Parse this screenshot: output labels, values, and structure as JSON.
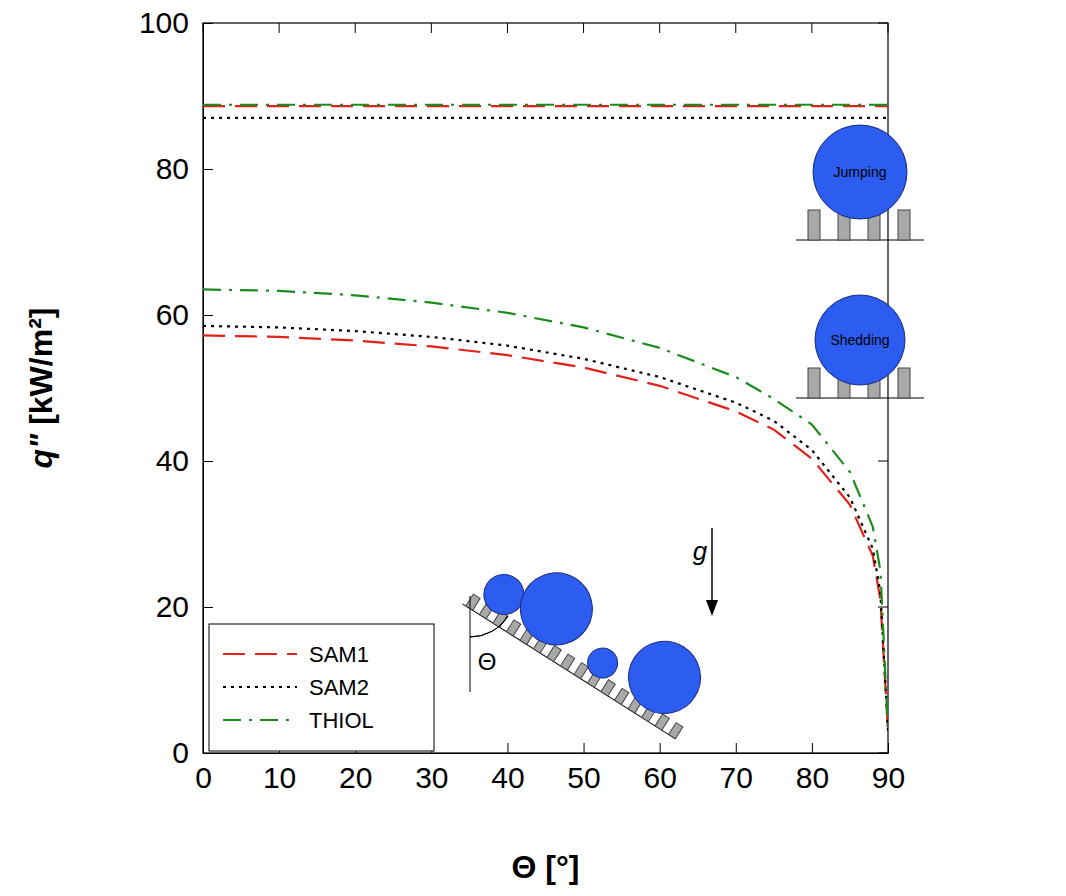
{
  "chart_data": {
    "type": "line",
    "x_label": "Θ [°]",
    "y_label": "q\" [kW/m²]",
    "x": [
      0,
      10,
      20,
      30,
      40,
      50,
      60,
      70,
      75,
      80,
      85,
      88,
      89,
      90
    ],
    "series": [
      {
        "color": "#e0201b",
        "line_style": "dashed",
        "values": [
          88.6,
          88.6,
          88.6,
          88.6,
          88.6,
          88.6,
          88.6,
          88.6,
          88.6,
          88.6,
          88.6,
          88.6,
          88.6,
          88.6
        ]
      },
      {
        "color": "#000000",
        "line_style": "dotted",
        "values": [
          87.0,
          87.0,
          87.0,
          87.0,
          87.0,
          87.0,
          87.0,
          87.0,
          87.0,
          87.0,
          87.0,
          87.0,
          87.0,
          87.0
        ]
      },
      {
        "color": "#1b8c1b",
        "line_style": "dashdot",
        "values": [
          88.8,
          88.8,
          88.8,
          88.8,
          88.8,
          88.8,
          88.8,
          88.8,
          88.8,
          88.8,
          88.8,
          88.8,
          88.8,
          88.8
        ]
      },
      {
        "name": "SAM1",
        "color": "#e0201b",
        "line_style": "dashed",
        "values": [
          57.2,
          57.0,
          56.5,
          55.7,
          54.5,
          52.8,
          50.3,
          46.8,
          44.3,
          40.3,
          34,
          27,
          21,
          3
        ]
      },
      {
        "name": "SAM2",
        "color": "#000000",
        "line_style": "dotted",
        "values": [
          58.5,
          58.3,
          57.8,
          57.0,
          55.8,
          54.0,
          51.5,
          48.0,
          45.5,
          41.5,
          35,
          28,
          22,
          3
        ]
      },
      {
        "name": "THIOL",
        "color": "#1b8c1b",
        "line_style": "dashdot",
        "values": [
          63.5,
          63.3,
          62.7,
          61.7,
          60.3,
          58.3,
          55.5,
          51.5,
          48.5,
          45.0,
          38.5,
          31,
          25,
          3
        ]
      }
    ],
    "xlim": [
      0,
      90
    ],
    "ylim": [
      0,
      100
    ],
    "xticks": [
      0,
      10,
      20,
      30,
      40,
      50,
      60,
      70,
      80,
      90
    ],
    "yticks": [
      0,
      20,
      40,
      60,
      80,
      100
    ],
    "grid": false,
    "legend": "lower left",
    "annotations": [
      {
        "text": "Jumping"
      },
      {
        "text": "Shedding"
      },
      {
        "text": "g"
      },
      {
        "text": "Θ"
      }
    ]
  }
}
